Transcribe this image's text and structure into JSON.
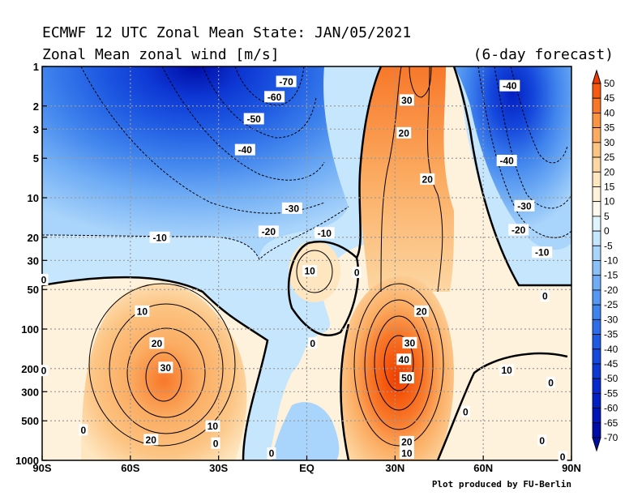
{
  "chart_data": {
    "type": "heatmap",
    "title": "ECMWF 12 UTC Zonal Mean State: JAN/05/2021",
    "subtitle": "Zonal Mean zonal wind [m/s]",
    "forecast_note": "(6-day forecast)",
    "credit": "Plot produced by FU-Berlin",
    "x_ticks": [
      "90S",
      "60S",
      "30S",
      "EQ",
      "30N",
      "60N",
      "90N"
    ],
    "x_values": [
      -90,
      -60,
      -30,
      0,
      30,
      60,
      90
    ],
    "y_ticks": [
      "1",
      "2",
      "3",
      "5",
      "10",
      "20",
      "30",
      "50",
      "100",
      "200",
      "300",
      "500",
      "1000"
    ],
    "y_values": [
      1,
      2,
      3,
      5,
      10,
      20,
      30,
      50,
      100,
      200,
      300,
      500,
      1000
    ],
    "y_scale": "log-pressure (reversed)",
    "xlim": [
      -90,
      90
    ],
    "ylim": [
      1000,
      1
    ],
    "grid": true,
    "colorbar": {
      "labels": [
        "50",
        "45",
        "40",
        "35",
        "30",
        "25",
        "20",
        "15",
        "10",
        "5",
        "0",
        "-5",
        "-10",
        "-15",
        "-20",
        "-25",
        "-30",
        "-35",
        "-40",
        "-45",
        "-50",
        "-55",
        "-60",
        "-65",
        "-70"
      ],
      "levels": [
        50,
        45,
        40,
        35,
        30,
        25,
        20,
        15,
        10,
        5,
        0,
        -5,
        -10,
        -15,
        -20,
        -25,
        -30,
        -35,
        -40,
        -45,
        -50,
        -55,
        -60,
        -65,
        -70
      ],
      "colors": [
        "#f03c00",
        "#f55a10",
        "#f8782a",
        "#f99445",
        "#fbac62",
        "#fcc483",
        "#fdd7a3",
        "#fee6c0",
        "#fff2dc",
        "#fffaf0",
        "#e0f4ff",
        "#c6e6fd",
        "#a9d4fb",
        "#8cc1f8",
        "#70adf5",
        "#5698f1",
        "#3f83ed",
        "#2d6ee8",
        "#1e5ae2",
        "#1548dc",
        "#0e38d4",
        "#082acc",
        "#041fc2",
        "#0216b8",
        "#000ca8"
      ]
    },
    "contour_labels": [
      {
        "text": "-70",
        "lat": -7,
        "p": 1.3
      },
      {
        "text": "-60",
        "lat": -11,
        "p": 1.7
      },
      {
        "text": "-50",
        "lat": -18,
        "p": 2.5
      },
      {
        "text": "-40",
        "lat": -21,
        "p": 4.3
      },
      {
        "text": "-30",
        "lat": -5,
        "p": 12
      },
      {
        "text": "-20",
        "lat": -13,
        "p": 18
      },
      {
        "text": "-10",
        "lat": 6,
        "p": 18.5
      },
      {
        "text": "-10",
        "lat": -50,
        "p": 20
      },
      {
        "text": "-40",
        "lat": 69,
        "p": 1.4
      },
      {
        "text": "-40",
        "lat": 68,
        "p": 5.2
      },
      {
        "text": "-30",
        "lat": 74,
        "p": 11.5
      },
      {
        "text": "-20",
        "lat": 72,
        "p": 17.5
      },
      {
        "text": "-10",
        "lat": 80,
        "p": 26
      },
      {
        "text": "30",
        "lat": 34,
        "p": 1.8
      },
      {
        "text": "20",
        "lat": 33,
        "p": 3.2
      },
      {
        "text": "20",
        "lat": 41,
        "p": 7.2
      },
      {
        "text": "10",
        "lat": 1,
        "p": 36
      },
      {
        "text": "0",
        "lat": 17,
        "p": 37
      },
      {
        "text": "0",
        "lat": -93,
        "p": 42
      },
      {
        "text": "0",
        "lat": 81,
        "p": 56
      },
      {
        "text": "20",
        "lat": 39,
        "p": 73
      },
      {
        "text": "30",
        "lat": 35,
        "p": 127
      },
      {
        "text": "40",
        "lat": 33,
        "p": 170
      },
      {
        "text": "50",
        "lat": 34,
        "p": 235
      },
      {
        "text": "10",
        "lat": -56,
        "p": 73
      },
      {
        "text": "20",
        "lat": -51,
        "p": 128
      },
      {
        "text": "30",
        "lat": -48,
        "p": 196
      },
      {
        "text": "0",
        "lat": 2,
        "p": 128
      },
      {
        "text": "0",
        "lat": -93,
        "p": 207
      },
      {
        "text": "10",
        "lat": 68,
        "p": 205
      },
      {
        "text": "10",
        "lat": -32,
        "p": 548
      },
      {
        "text": "0",
        "lat": -76,
        "p": 585
      },
      {
        "text": "0",
        "lat": -31,
        "p": 740
      },
      {
        "text": "20",
        "lat": -53,
        "p": 695
      },
      {
        "text": "0",
        "lat": -12,
        "p": 880
      },
      {
        "text": "20",
        "lat": 34,
        "p": 720
      },
      {
        "text": "10",
        "lat": 34,
        "p": 880
      },
      {
        "text": "0",
        "lat": 54,
        "p": 425
      },
      {
        "text": "0",
        "lat": 83,
        "p": 255
      },
      {
        "text": "0",
        "lat": 80,
        "p": 705
      },
      {
        "text": "0",
        "lat": 87,
        "p": 940
      }
    ]
  }
}
